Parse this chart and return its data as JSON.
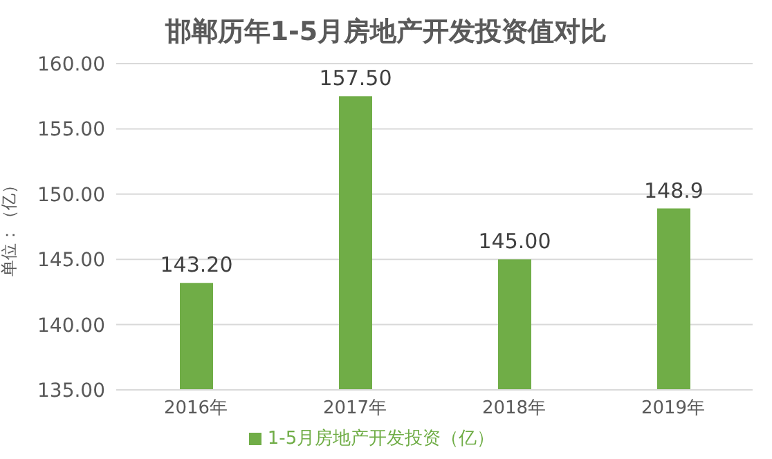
{
  "chart_data": {
    "type": "bar",
    "title": "邯郸历年1-5月房地产开发投资值对比",
    "ylabel": "单位：（亿）",
    "categories": [
      "2016年",
      "2017年",
      "2018年",
      "2019年"
    ],
    "series": [
      {
        "name": "1-5月房地产开发投资（亿）",
        "color": "#70ad47",
        "values": [
          143.2,
          157.5,
          145,
          148.9
        ],
        "value_labels": [
          "143.20",
          "157.50",
          "145.00",
          "148.9"
        ]
      }
    ],
    "ylim": [
      135,
      160
    ],
    "yticks": [
      {
        "value": 135,
        "label": "135.00"
      },
      {
        "value": 140,
        "label": "140.00"
      },
      {
        "value": 145,
        "label": "145.00"
      },
      {
        "value": 150,
        "label": "150.00"
      },
      {
        "value": 155,
        "label": "155.00"
      },
      {
        "value": 160,
        "label": "160.00"
      }
    ],
    "grid": "y",
    "legend": "bottom"
  }
}
